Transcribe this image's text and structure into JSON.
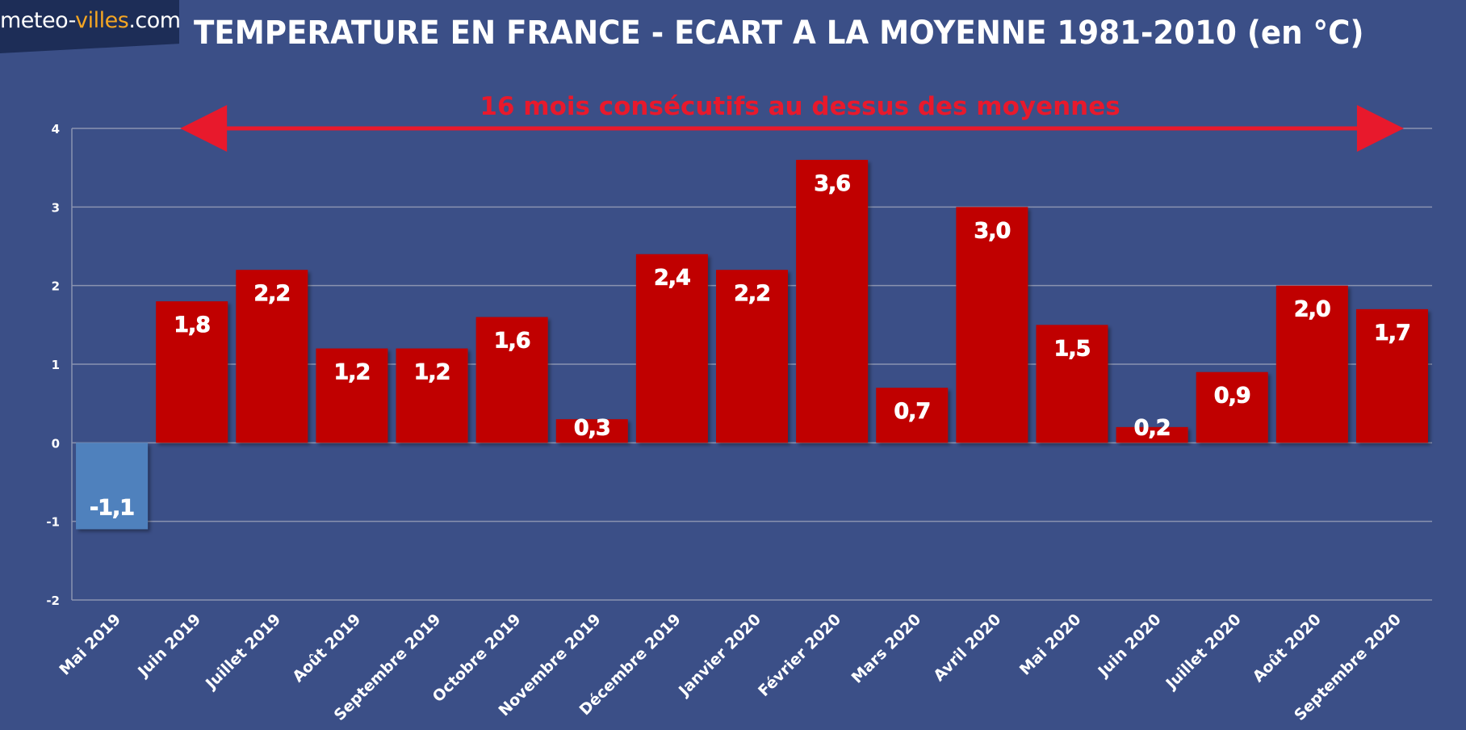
{
  "logo": {
    "part1": "meteo-",
    "part2": "villes",
    "part3": ".com"
  },
  "title": "TEMPERATURE EN FRANCE - ECART A LA MOYENNE 1981-2010 (en °C)",
  "colors": {
    "background": "#3b4f87",
    "positive_bar": "#c00000",
    "negative_bar": "#4f81bd",
    "annotation": "#e8192c",
    "gridline": "#8a93b0",
    "text": "#ffffff"
  },
  "chart_data": {
    "type": "bar",
    "title": "TEMPERATURE EN FRANCE - ECART A LA MOYENNE 1981-2010 (en °C)",
    "xlabel": "",
    "ylabel": "",
    "ylim": [
      -2,
      4
    ],
    "yticks": [
      -2,
      -1,
      0,
      1,
      2,
      3,
      4
    ],
    "grid": true,
    "categories": [
      "Mai 2019",
      "Juin 2019",
      "Juillet 2019",
      "Août 2019",
      "Septembre 2019",
      "Octobre 2019",
      "Novembre 2019",
      "Décembre 2019",
      "Janvier 2020",
      "Février 2020",
      "Mars 2020",
      "Avril 2020",
      "Mai 2020",
      "Juin 2020",
      "Juillet 2020",
      "Août 2020",
      "Septembre 2020"
    ],
    "values": [
      -1.1,
      1.8,
      2.2,
      1.2,
      1.2,
      1.6,
      0.3,
      2.4,
      2.2,
      3.6,
      0.7,
      3.0,
      1.5,
      0.2,
      0.9,
      2.0,
      1.7
    ],
    "value_labels": [
      "-1,1",
      "1,8",
      "2,2",
      "1,2",
      "1,2",
      "1,6",
      "0,3",
      "2,4",
      "2,2",
      "3,6",
      "0,7",
      "3,0",
      "1,5",
      "0,2",
      "0,9",
      "2,0",
      "1,7"
    ],
    "annotation": {
      "text": "16 mois consécutifs au dessus des moyennes",
      "from_category": "Juin 2019",
      "to_category": "Septembre 2020",
      "y": 4
    }
  }
}
